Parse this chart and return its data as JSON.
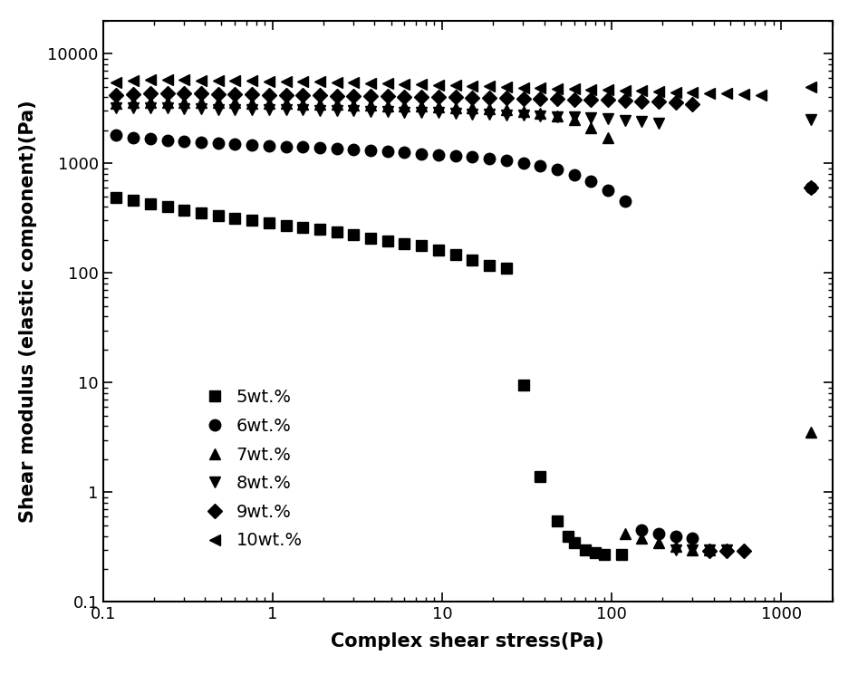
{
  "title": "",
  "xlabel": "Complex shear stress(Pa)",
  "ylabel": "Shear modulus (elastic component)(Pa)",
  "xlim": [
    0.1,
    2000
  ],
  "ylim": [
    0.1,
    20000
  ],
  "background_color": "#ffffff",
  "series": {
    "5wt.%": {
      "marker": "s",
      "x": [
        0.12,
        0.15,
        0.19,
        0.24,
        0.3,
        0.38,
        0.48,
        0.6,
        0.76,
        0.95,
        1.2,
        1.51,
        1.9,
        2.39,
        3.01,
        3.79,
        4.77,
        6.0,
        7.56,
        9.51,
        11.98,
        15.08,
        18.98,
        23.9,
        30.1,
        37.9,
        47.7,
        55,
        60,
        70,
        80,
        90,
        115
      ],
      "y": [
        490,
        460,
        430,
        400,
        375,
        355,
        335,
        315,
        300,
        285,
        272,
        262,
        252,
        238,
        222,
        208,
        197,
        186,
        176,
        162,
        147,
        132,
        118,
        110,
        9.5,
        1.4,
        0.55,
        0.4,
        0.35,
        0.3,
        0.28,
        0.27,
        0.27
      ]
    },
    "6wt.%": {
      "marker": "o",
      "x": [
        0.12,
        0.15,
        0.19,
        0.24,
        0.3,
        0.38,
        0.48,
        0.6,
        0.76,
        0.95,
        1.2,
        1.51,
        1.9,
        2.39,
        3.01,
        3.79,
        4.77,
        6.0,
        7.56,
        9.51,
        11.98,
        15.08,
        18.98,
        23.9,
        30.1,
        37.9,
        47.7,
        60.0,
        75.6,
        95.1,
        119.8,
        150.8,
        189.8,
        239.0,
        300.0,
        1500
      ],
      "y": [
        1800,
        1720,
        1670,
        1620,
        1580,
        1550,
        1510,
        1490,
        1460,
        1440,
        1420,
        1400,
        1380,
        1360,
        1335,
        1305,
        1280,
        1250,
        1220,
        1200,
        1170,
        1140,
        1100,
        1055,
        1010,
        955,
        880,
        790,
        685,
        565,
        450,
        0.45,
        0.42,
        0.4,
        0.38,
        600
      ]
    },
    "7wt.%": {
      "marker": "^",
      "x": [
        0.12,
        0.15,
        0.19,
        0.24,
        0.3,
        0.38,
        0.48,
        0.6,
        0.76,
        0.95,
        1.2,
        1.51,
        1.9,
        2.39,
        3.01,
        3.79,
        4.77,
        6.0,
        7.56,
        9.51,
        11.98,
        15.08,
        18.98,
        23.9,
        30.1,
        37.9,
        47.7,
        60.0,
        75.6,
        95.1,
        119.8,
        150.8,
        189.8,
        239.0,
        300.0,
        379.0,
        1500
      ],
      "y": [
        3500,
        3580,
        3620,
        3620,
        3610,
        3600,
        3570,
        3560,
        3510,
        3510,
        3490,
        3470,
        3450,
        3430,
        3410,
        3385,
        3355,
        3325,
        3295,
        3265,
        3225,
        3185,
        3125,
        3055,
        2975,
        2855,
        2710,
        2510,
        2110,
        1710,
        0.42,
        0.38,
        0.35,
        0.32,
        0.3,
        0.3,
        3.5
      ]
    },
    "8wt.%": {
      "marker": "v",
      "x": [
        0.12,
        0.15,
        0.19,
        0.24,
        0.3,
        0.38,
        0.48,
        0.6,
        0.76,
        0.95,
        1.2,
        1.51,
        1.9,
        2.39,
        3.01,
        3.79,
        4.77,
        6.0,
        7.56,
        9.51,
        11.98,
        15.08,
        18.98,
        23.9,
        30.1,
        37.9,
        47.7,
        60.0,
        75.6,
        95.1,
        119.8,
        150.8,
        189.8,
        239.0,
        300.0,
        379.0,
        477.0,
        1500
      ],
      "y": [
        3200,
        3210,
        3210,
        3205,
        3160,
        3155,
        3110,
        3105,
        3100,
        3085,
        3075,
        3055,
        3035,
        3015,
        2995,
        2975,
        2955,
        2935,
        2915,
        2885,
        2855,
        2825,
        2795,
        2765,
        2735,
        2705,
        2665,
        2625,
        2585,
        2535,
        2475,
        2405,
        2305,
        0.3,
        0.3,
        0.3,
        0.3,
        2500
      ]
    },
    "9wt.%": {
      "marker": "D",
      "x": [
        0.12,
        0.15,
        0.19,
        0.24,
        0.3,
        0.38,
        0.48,
        0.6,
        0.76,
        0.95,
        1.2,
        1.51,
        1.9,
        2.39,
        3.01,
        3.79,
        4.77,
        6.0,
        7.56,
        9.51,
        11.98,
        15.08,
        18.98,
        23.9,
        30.1,
        37.9,
        47.7,
        60.0,
        75.6,
        95.1,
        119.8,
        150.8,
        189.8,
        239.0,
        300.0,
        379.0,
        477.0,
        600.0,
        1500
      ],
      "y": [
        4200,
        4220,
        4300,
        4310,
        4310,
        4305,
        4285,
        4255,
        4225,
        4205,
        4185,
        4165,
        4145,
        4125,
        4105,
        4085,
        4065,
        4045,
        4025,
        4005,
        3985,
        3965,
        3945,
        3925,
        3905,
        3885,
        3855,
        3825,
        3795,
        3765,
        3725,
        3685,
        3625,
        3555,
        3455,
        0.29,
        0.29,
        0.29,
        600
      ]
    },
    "10wt.%": {
      "marker": "<",
      "x": [
        0.12,
        0.15,
        0.19,
        0.24,
        0.3,
        0.38,
        0.48,
        0.6,
        0.76,
        0.95,
        1.2,
        1.51,
        1.9,
        2.39,
        3.01,
        3.79,
        4.77,
        6.0,
        7.56,
        9.51,
        11.98,
        15.08,
        18.98,
        23.9,
        30.1,
        37.9,
        47.7,
        60.0,
        75.6,
        95.1,
        119.8,
        150.8,
        189.8,
        239.0,
        300.0,
        379.0,
        477.0,
        600.0,
        756.0,
        1500
      ],
      "y": [
        5500,
        5700,
        5820,
        5820,
        5720,
        5710,
        5700,
        5660,
        5610,
        5605,
        5555,
        5505,
        5505,
        5455,
        5405,
        5355,
        5305,
        5255,
        5205,
        5155,
        5105,
        5055,
        5005,
        4955,
        4905,
        4855,
        4805,
        4755,
        4705,
        4655,
        4605,
        4555,
        4505,
        4455,
        4405,
        4355,
        4305,
        4255,
        4200,
        5000
      ]
    }
  }
}
